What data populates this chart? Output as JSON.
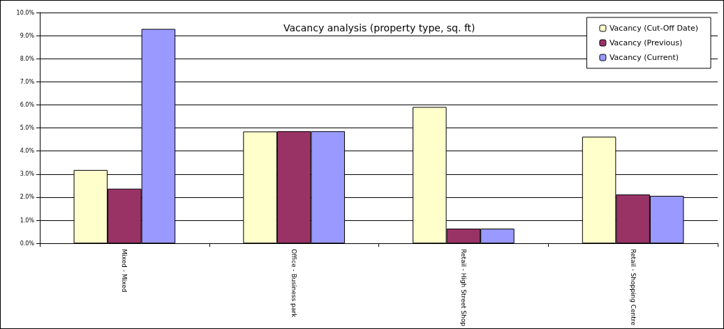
{
  "chart_data": {
    "type": "bar",
    "title": "Vacancy analysis (property type, sq. ft)",
    "categories": [
      "Mixed - Mixed",
      "Office - Business park",
      "Retail - High Street Shop",
      "Retail - Shopping Centre"
    ],
    "series": [
      {
        "name": "Vacancy (Cut-Off Date)",
        "color": "#ffffcc",
        "values": [
          3.18,
          4.85,
          5.91,
          4.62
        ]
      },
      {
        "name": "Vacancy (Previous)",
        "color": "#993366",
        "values": [
          2.37,
          4.86,
          0.64,
          2.12
        ]
      },
      {
        "name": "Vacancy (Current)",
        "color": "#9999ff",
        "values": [
          9.29,
          4.86,
          0.64,
          2.06
        ]
      }
    ],
    "ylim": [
      0,
      10
    ],
    "yticks": [
      {
        "value": 0,
        "label": "0.0%"
      },
      {
        "value": 1,
        "label": "1.0%"
      },
      {
        "value": 2,
        "label": "2.0%"
      },
      {
        "value": 3,
        "label": "3.0%"
      },
      {
        "value": 4,
        "label": "4.0%"
      },
      {
        "value": 5,
        "label": "5.0%"
      },
      {
        "value": 6,
        "label": "6.0%"
      },
      {
        "value": 7,
        "label": "7.0%"
      },
      {
        "value": 8,
        "label": "8.0%"
      },
      {
        "value": 9,
        "label": "9.0%"
      },
      {
        "value": 10,
        "label": "10.0%"
      }
    ],
    "grid": "y",
    "legend": "top right"
  }
}
